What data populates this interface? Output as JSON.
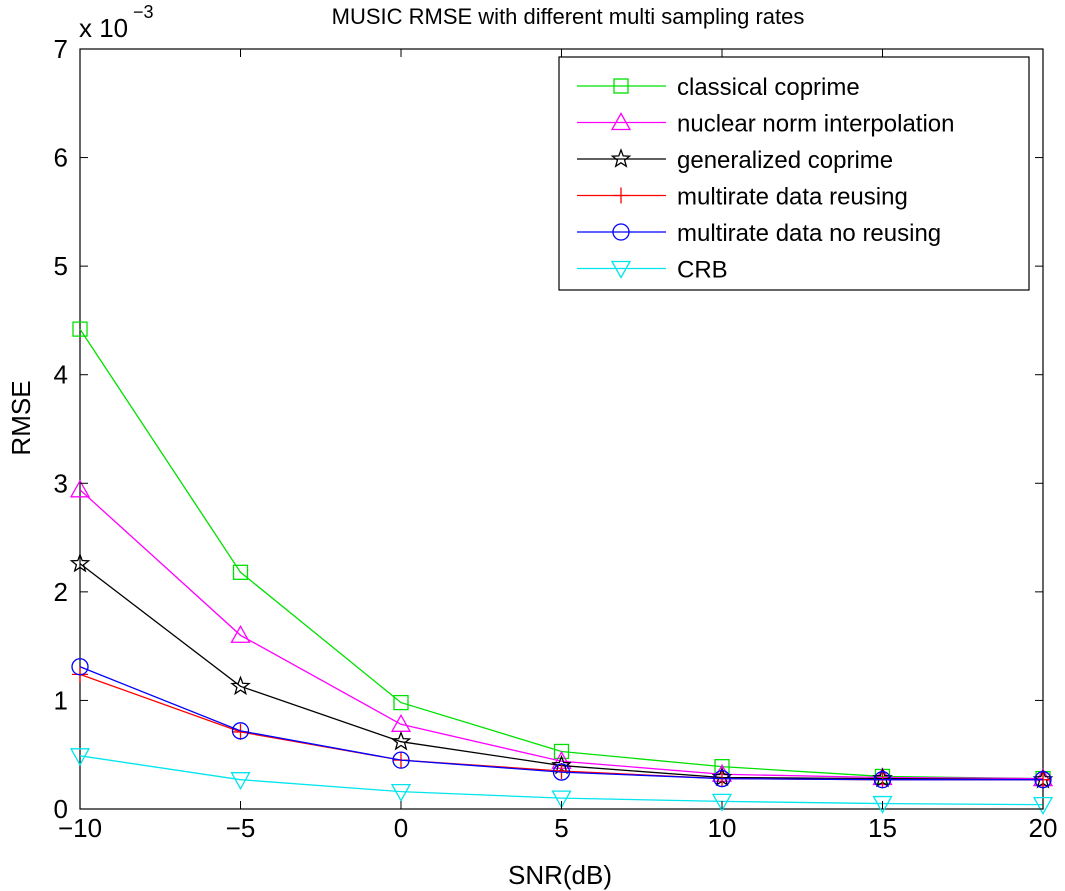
{
  "chart_data": {
    "type": "line",
    "title": "MUSIC RMSE with different multi sampling rates",
    "xlabel": "SNR(dB)",
    "ylabel": "RMSE",
    "y_multiplier": {
      "base": "x 10",
      "exponent": "−3"
    },
    "xlim": [
      -10,
      20
    ],
    "ylim": [
      0,
      7
    ],
    "xticks": [
      -10,
      -5,
      0,
      5,
      10,
      15,
      20
    ],
    "xtick_labels": [
      "−10",
      "−5",
      "0",
      "5",
      "10",
      "15",
      "20"
    ],
    "yticks": [
      0,
      1,
      2,
      3,
      4,
      5,
      6,
      7
    ],
    "ytick_labels": [
      "0",
      "1",
      "2",
      "3",
      "4",
      "5",
      "6",
      "7"
    ],
    "grid": false,
    "legend_position": "top-right",
    "x": [
      -10,
      -5,
      0,
      5,
      10,
      15,
      20
    ],
    "series": [
      {
        "name": "classical coprime",
        "color": "#00e000",
        "marker": "square",
        "values": [
          4.42,
          2.18,
          0.98,
          0.53,
          0.39,
          0.3,
          0.28
        ]
      },
      {
        "name": "nuclear norm interpolation",
        "color": "#ff00ff",
        "marker": "triangle-up",
        "values": [
          2.94,
          1.6,
          0.78,
          0.44,
          0.32,
          0.29,
          0.28
        ]
      },
      {
        "name": "generalized coprime",
        "color": "#000000",
        "marker": "star",
        "values": [
          2.26,
          1.13,
          0.62,
          0.4,
          0.29,
          0.28,
          0.27
        ]
      },
      {
        "name": "multirate data reusing",
        "color": "#ff0000",
        "marker": "plus",
        "values": [
          1.24,
          0.71,
          0.45,
          0.35,
          0.28,
          0.27,
          0.27
        ]
      },
      {
        "name": "multirate data no reusing",
        "color": "#0000ff",
        "marker": "circle",
        "values": [
          1.31,
          0.72,
          0.45,
          0.34,
          0.28,
          0.27,
          0.27
        ]
      },
      {
        "name": "CRB",
        "color": "#00e5ee",
        "marker": "triangle-down",
        "values": [
          0.49,
          0.27,
          0.16,
          0.1,
          0.07,
          0.05,
          0.04
        ]
      }
    ]
  }
}
